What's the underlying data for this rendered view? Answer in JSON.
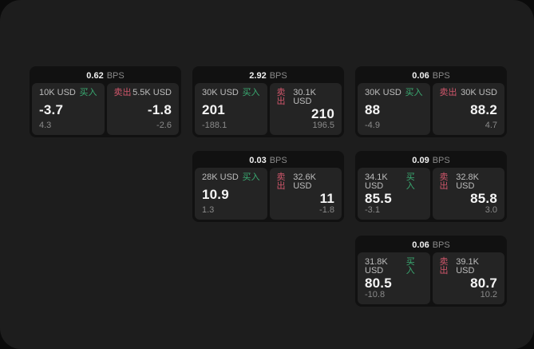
{
  "labels": {
    "bps_unit": "BPS",
    "buy": "买入",
    "sell": "卖出"
  },
  "colors": {
    "buy_green": "#3aab72",
    "sell_red": "#d0566b"
  },
  "cards": [
    {
      "bps": "0.62",
      "buy": {
        "amount": "10K USD",
        "price": "-3.7",
        "sub": "4.3"
      },
      "sell": {
        "amount": "5.5K USD",
        "price": "-1.8",
        "sub": "-2.6"
      }
    },
    {
      "bps": "2.92",
      "buy": {
        "amount": "30K USD",
        "price": "201",
        "sub": "-188.1"
      },
      "sell": {
        "amount": "30.1K USD",
        "price": "210",
        "sub": "196.5"
      }
    },
    {
      "bps": "0.06",
      "buy": {
        "amount": "30K USD",
        "price": "88",
        "sub": "-4.9"
      },
      "sell": {
        "amount": "30K USD",
        "price": "88.2",
        "sub": "4.7"
      }
    },
    {
      "bps": "0.03",
      "buy": {
        "amount": "28K USD",
        "price": "10.9",
        "sub": "1.3"
      },
      "sell": {
        "amount": "32.6K USD",
        "price": "11",
        "sub": "-1.8"
      }
    },
    {
      "bps": "0.09",
      "buy": {
        "amount": "34.1K USD",
        "price": "85.5",
        "sub": "-3.1"
      },
      "sell": {
        "amount": "32.8K USD",
        "price": "85.8",
        "sub": "3.0"
      }
    },
    {
      "bps": "0.06",
      "buy": {
        "amount": "31.8K USD",
        "price": "80.5",
        "sub": "-10.8"
      },
      "sell": {
        "amount": "39.1K USD",
        "price": "80.7",
        "sub": "10.2"
      }
    }
  ]
}
